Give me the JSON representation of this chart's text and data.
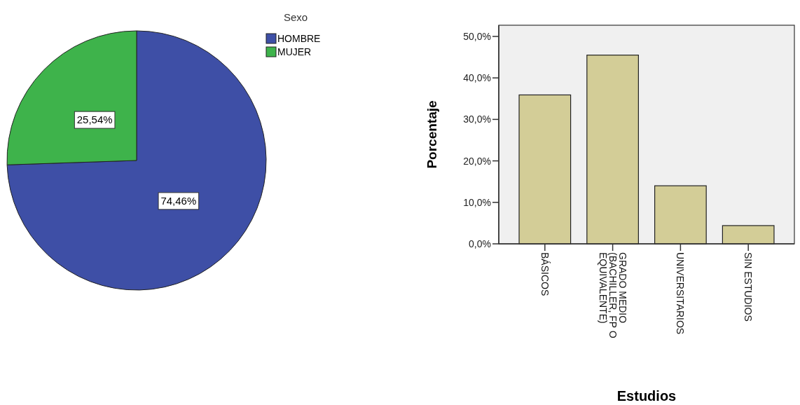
{
  "chart_data": [
    {
      "type": "pie",
      "legend_title": "Sexo",
      "categories": [
        "HOMBRE",
        "MUJER"
      ],
      "values": [
        74.46,
        25.54
      ],
      "colors": [
        "#3e4fa6",
        "#3eb34b"
      ],
      "value_labels": [
        "74,46%",
        "25,54%"
      ],
      "legend": "top right"
    },
    {
      "type": "bar",
      "xlabel": "Estudios",
      "ylabel": "Porcentaje",
      "categories": [
        "BÁSICOS",
        "GRADO MEDIO (BACHILLER, FP O EQUIVALENTE)",
        "UNIVERSITARIOS",
        "SIN ESTUDIOS"
      ],
      "values": [
        35.9,
        45.5,
        14.0,
        4.4
      ],
      "color": "#d3cd97",
      "ylim": [
        0,
        52.7
      ],
      "yticks": [
        {
          "value": 0,
          "label": "0,0%"
        },
        {
          "value": 10,
          "label": "10,0%"
        },
        {
          "value": 20,
          "label": "20,0%"
        },
        {
          "value": 30,
          "label": "30,0%"
        },
        {
          "value": 40,
          "label": "40,0%"
        },
        {
          "value": 50,
          "label": "50,0%"
        }
      ]
    }
  ]
}
